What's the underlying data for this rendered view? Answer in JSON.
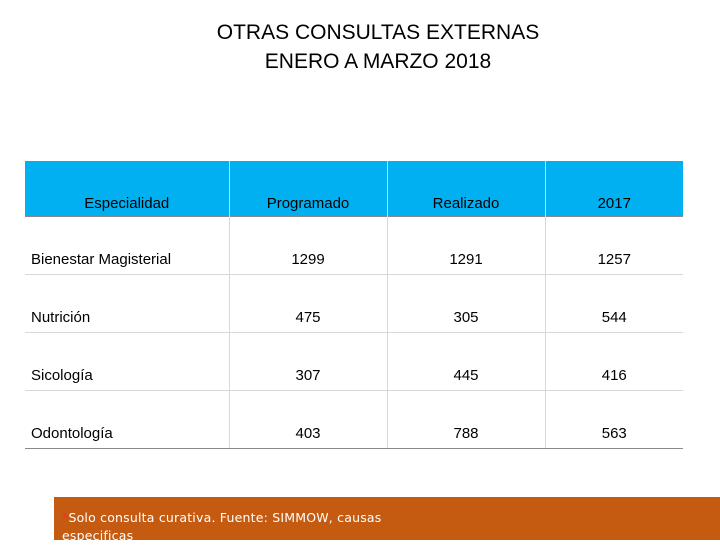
{
  "title": {
    "line1": "OTRAS CONSULTAS  EXTERNAS",
    "line2": "ENERO A MARZO 2018"
  },
  "table": {
    "headers": [
      "Especialidad",
      "Programado",
      "Realizado",
      "2017"
    ],
    "rows": [
      [
        "Bienestar Magisterial",
        "1299",
        "1291",
        "1257"
      ],
      [
        "Nutrición",
        "475",
        "305",
        "544"
      ],
      [
        "Sicología",
        "307",
        "445",
        "416"
      ],
      [
        "Odontología",
        "403",
        "788",
        "563"
      ]
    ]
  },
  "footer": {
    "asterisk": "*",
    "note": "Solo consulta curativa. Fuente: SIMMOW, causas especificas"
  },
  "colors": {
    "header_bg": "#00b0f0",
    "footer_bg": "#c55a11",
    "asterisk": "#ff2a2a"
  }
}
